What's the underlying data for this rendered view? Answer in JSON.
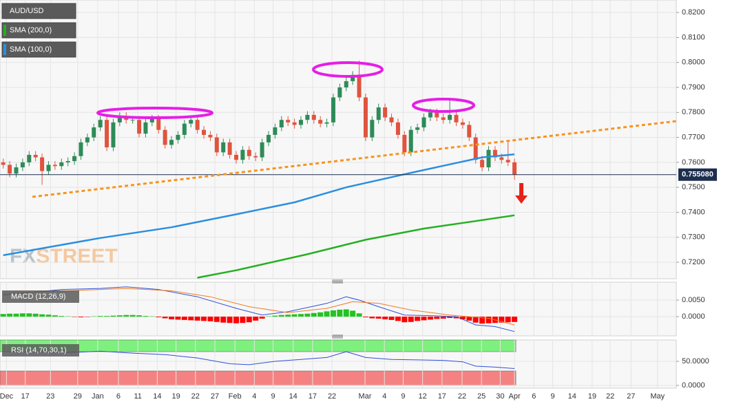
{
  "chart_data": [
    {
      "type": "candlestick",
      "symbol": "AUD/USD",
      "xlim": [
        -0.5,
        104
      ],
      "ylim": [
        0.7134,
        0.825
      ],
      "yticks": [
        {
          "value": 0.72,
          "label": "0.7200"
        },
        {
          "value": 0.73,
          "label": "0.7300"
        },
        {
          "value": 0.74,
          "label": "0.7400"
        },
        {
          "value": 0.75,
          "label": "0.7500"
        },
        {
          "value": 0.76,
          "label": "0.7600"
        },
        {
          "value": 0.77,
          "label": "0.7700"
        },
        {
          "value": 0.78,
          "label": "0.7800"
        },
        {
          "value": 0.79,
          "label": "0.7900"
        },
        {
          "value": 0.8,
          "label": "0.8000"
        },
        {
          "value": 0.81,
          "label": "0.8100"
        },
        {
          "value": 0.82,
          "label": "0.8200"
        }
      ],
      "xticks": [
        {
          "value": 0.5,
          "label": "Dec"
        },
        {
          "value": 3.4,
          "label": "17"
        },
        {
          "value": 7.3,
          "label": "23"
        },
        {
          "value": 11.5,
          "label": "29"
        },
        {
          "value": 14.6,
          "label": "Jan"
        },
        {
          "value": 17.8,
          "label": "6"
        },
        {
          "value": 20.8,
          "label": "11"
        },
        {
          "value": 23.8,
          "label": "14"
        },
        {
          "value": 26.7,
          "label": "19"
        },
        {
          "value": 29.7,
          "label": "22"
        },
        {
          "value": 32.7,
          "label": "27"
        },
        {
          "value": 35.8,
          "label": "Feb"
        },
        {
          "value": 38.8,
          "label": "4"
        },
        {
          "value": 41.7,
          "label": "9"
        },
        {
          "value": 44.8,
          "label": "14"
        },
        {
          "value": 47.8,
          "label": "17"
        },
        {
          "value": 50.8,
          "label": "22"
        },
        {
          "value": 55.9,
          "label": "Mar"
        },
        {
          "value": 58.9,
          "label": "4"
        },
        {
          "value": 61.8,
          "label": "9"
        },
        {
          "value": 64.8,
          "label": "12"
        },
        {
          "value": 67.8,
          "label": "17"
        },
        {
          "value": 70.9,
          "label": "22"
        },
        {
          "value": 73.9,
          "label": "25"
        },
        {
          "value": 76.8,
          "label": "30"
        },
        {
          "value": 79,
          "label": "Apr"
        },
        {
          "value": 82,
          "label": "6"
        },
        {
          "value": 84.9,
          "label": "9"
        },
        {
          "value": 87.9,
          "label": "14"
        },
        {
          "value": 91,
          "label": "19"
        },
        {
          "value": 93.8,
          "label": "22"
        },
        {
          "value": 97,
          "label": "27"
        },
        {
          "value": 101.1,
          "label": "May"
        }
      ],
      "up_color": "#2e8b57",
      "down_color": "#e0543f",
      "grid": true,
      "ohlc": {
        "open": [
          0.76,
          0.759,
          0.7555,
          0.758,
          0.76,
          0.763,
          0.762,
          0.7565,
          0.759,
          0.7585,
          0.76,
          0.7605,
          0.7625,
          0.768,
          0.77,
          0.774,
          0.777,
          0.766,
          0.776,
          0.7785,
          0.777,
          0.777,
          0.7715,
          0.776,
          0.7775,
          0.773,
          0.767,
          0.769,
          0.771,
          0.7755,
          0.777,
          0.773,
          0.771,
          0.77,
          0.764,
          0.768,
          0.763,
          0.761,
          0.765,
          0.7625,
          0.762,
          0.768,
          0.771,
          0.774,
          0.777,
          0.776,
          0.775,
          0.777,
          0.779,
          0.777,
          0.7755,
          0.776,
          0.786,
          0.79,
          0.7925,
          0.795,
          0.786,
          0.77,
          0.777,
          0.782,
          0.778,
          0.776,
          0.771,
          0.764,
          0.773,
          0.774,
          0.778,
          0.78,
          0.778,
          0.777,
          0.779,
          0.776,
          0.775,
          0.77,
          0.761,
          0.758,
          0.765,
          0.762,
          0.761,
          0.76
        ],
        "high": [
          0.7615,
          0.7605,
          0.7595,
          0.7615,
          0.7645,
          0.7645,
          0.7635,
          0.7605,
          0.7605,
          0.7615,
          0.762,
          0.764,
          0.7695,
          0.7715,
          0.7755,
          0.7785,
          0.7785,
          0.7775,
          0.78,
          0.78,
          0.7785,
          0.7785,
          0.7775,
          0.779,
          0.779,
          0.7745,
          0.7705,
          0.7725,
          0.777,
          0.7785,
          0.7785,
          0.7745,
          0.7725,
          0.7715,
          0.7695,
          0.7695,
          0.7645,
          0.7665,
          0.7665,
          0.764,
          0.7695,
          0.7725,
          0.7755,
          0.7785,
          0.7785,
          0.7775,
          0.7785,
          0.7805,
          0.7805,
          0.7785,
          0.7775,
          0.7875,
          0.7915,
          0.794,
          0.7965,
          0.8007,
          0.7875,
          0.7785,
          0.7835,
          0.7835,
          0.7795,
          0.7775,
          0.7725,
          0.7745,
          0.7755,
          0.7795,
          0.7815,
          0.7815,
          0.7795,
          0.785,
          0.7805,
          0.7775,
          0.7765,
          0.7715,
          0.7625,
          0.7665,
          0.7665,
          0.7635,
          0.769,
          0.7615
        ],
        "low": [
          0.7575,
          0.754,
          0.754,
          0.7565,
          0.7585,
          0.7605,
          0.751,
          0.755,
          0.757,
          0.757,
          0.7585,
          0.759,
          0.761,
          0.7665,
          0.7685,
          0.7725,
          0.7645,
          0.7645,
          0.7745,
          0.7755,
          0.7755,
          0.77,
          0.77,
          0.7745,
          0.7715,
          0.7655,
          0.7655,
          0.7675,
          0.7695,
          0.774,
          0.7715,
          0.7695,
          0.7685,
          0.7625,
          0.7625,
          0.7615,
          0.7595,
          0.7595,
          0.761,
          0.7605,
          0.7605,
          0.7665,
          0.7695,
          0.7725,
          0.7745,
          0.7735,
          0.7735,
          0.7755,
          0.7755,
          0.774,
          0.774,
          0.7745,
          0.7845,
          0.7885,
          0.791,
          0.7845,
          0.7685,
          0.7685,
          0.7755,
          0.7765,
          0.7745,
          0.7695,
          0.7625,
          0.7625,
          0.7715,
          0.7725,
          0.7765,
          0.7765,
          0.7755,
          0.7755,
          0.7745,
          0.7735,
          0.7685,
          0.7595,
          0.7565,
          0.7565,
          0.7605,
          0.7595,
          0.7585,
          0.753
        ],
        "close": [
          0.759,
          0.7555,
          0.758,
          0.76,
          0.763,
          0.762,
          0.7565,
          0.759,
          0.7585,
          0.76,
          0.7605,
          0.7625,
          0.768,
          0.77,
          0.774,
          0.777,
          0.766,
          0.776,
          0.7785,
          0.777,
          0.777,
          0.7715,
          0.776,
          0.7775,
          0.773,
          0.767,
          0.769,
          0.771,
          0.7755,
          0.777,
          0.773,
          0.771,
          0.77,
          0.764,
          0.768,
          0.763,
          0.761,
          0.765,
          0.7625,
          0.762,
          0.768,
          0.771,
          0.774,
          0.777,
          0.776,
          0.775,
          0.777,
          0.779,
          0.777,
          0.7755,
          0.776,
          0.786,
          0.79,
          0.7925,
          0.795,
          0.786,
          0.77,
          0.777,
          0.782,
          0.778,
          0.776,
          0.771,
          0.764,
          0.773,
          0.774,
          0.778,
          0.78,
          0.778,
          0.777,
          0.779,
          0.776,
          0.775,
          0.77,
          0.761,
          0.758,
          0.765,
          0.762,
          0.761,
          0.76,
          0.7551
        ]
      },
      "series": [
        {
          "name": "SMA (200,0)",
          "color": "#22b01e",
          "x": [
            30,
            36,
            47,
            56,
            65,
            73,
            79
          ],
          "values": [
            0.7138,
            0.7168,
            0.7232,
            0.729,
            0.7335,
            0.7365,
            0.7388
          ]
        },
        {
          "name": "SMA (100,0)",
          "color": "#2a8fe0",
          "x": [
            0,
            15,
            26,
            36,
            45,
            53,
            63,
            74,
            79
          ],
          "values": [
            0.7228,
            0.7297,
            0.734,
            0.7392,
            0.744,
            0.75,
            0.7558,
            0.762,
            0.7632
          ]
        }
      ],
      "last_price": {
        "value": 0.75508,
        "label": "0.755080"
      },
      "watermark": [
        "FX",
        "STREET"
      ]
    },
    {
      "type": "macd",
      "label": "MACD (12,26,9)",
      "ylim": [
        -0.0058,
        0.0104
      ],
      "yticks": [
        {
          "value": 0.005,
          "label": "0.0050"
        },
        {
          "value": 0,
          "label": "0.0000"
        }
      ],
      "up_color": "#22c322",
      "down_color": "#ff0000",
      "histogram": [
        0.0008,
        0.0009,
        0.0009,
        0.001,
        0.001,
        0.0009,
        0.0007,
        0.0006,
        0.0004,
        0.0002,
        0.0001,
        -0.0001,
        -0.0002,
        -0.0001,
        0.0001,
        0.0002,
        0.0002,
        0.0003,
        0.0004,
        0.0005,
        0.0005,
        0.0004,
        0.0002,
        0.0001,
        -0.0002,
        -0.0005,
        -0.0008,
        -0.0009,
        -0.001,
        -0.0011,
        -0.0012,
        -0.0013,
        -0.0014,
        -0.0016,
        -0.0018,
        -0.0019,
        -0.002,
        -0.0019,
        -0.0017,
        -0.0012,
        -0.0006,
        0.0001,
        0.0003,
        0.0005,
        0.0006,
        0.0007,
        0.0008,
        0.0009,
        0.0011,
        0.0013,
        0.0016,
        0.0019,
        0.0021,
        0.0022,
        0.0018,
        0.001,
        -0.0002,
        -0.0005,
        -0.0006,
        -0.0008,
        -0.001,
        -0.0013,
        -0.0017,
        -0.0016,
        -0.0013,
        -0.0011,
        -0.0009,
        -0.0007,
        -0.0006,
        -0.0004,
        -0.0005,
        -0.0008,
        -0.0012,
        -0.0018,
        -0.0021,
        -0.002,
        -0.0019,
        -0.0018,
        -0.0017,
        -0.0016
      ],
      "lines": [
        {
          "color": "#2f4fd8",
          "x": [
            0,
            9,
            15,
            19,
            24,
            30,
            36,
            40,
            44,
            50,
            53,
            55,
            58,
            62,
            66,
            70,
            73,
            76,
            79
          ],
          "values": [
            0.0065,
            0.0082,
            0.0085,
            0.009,
            0.0082,
            0.006,
            0.0025,
            0.0005,
            0.0015,
            0.004,
            0.006,
            0.005,
            0.003,
            0.0005,
            0.0003,
            0,
            -0.0025,
            -0.003,
            -0.0045
          ]
        },
        {
          "color": "#f07b22",
          "x": [
            0,
            10,
            19,
            26,
            32,
            38,
            44,
            50,
            54,
            58,
            63,
            69,
            75,
            79
          ],
          "values": [
            0.007,
            0.0078,
            0.0085,
            0.0078,
            0.006,
            0.003,
            0.0012,
            0.0025,
            0.0045,
            0.004,
            0.002,
            0.0005,
            -0.0005,
            -0.0025
          ]
        }
      ]
    },
    {
      "type": "rsi",
      "label": "RSI (14,70,30,1)",
      "ylim": [
        -5.7,
        94.3
      ],
      "yticks": [
        {
          "value": 50,
          "label": "50.0000"
        },
        {
          "value": 0,
          "label": "0.0000"
        }
      ],
      "zones": [
        {
          "from": 70,
          "to": 94.3,
          "color": "#7ef07e"
        },
        {
          "from": 0,
          "to": 30,
          "color": "#f58282"
        }
      ],
      "line": {
        "color": "#2f4fd8",
        "x": [
          0,
          5,
          10,
          15,
          20,
          25,
          30,
          35,
          38,
          42,
          46,
          50,
          53,
          56,
          60,
          64,
          68,
          71,
          73,
          76,
          79
        ],
        "values": [
          70,
          69,
          68,
          71,
          67,
          64,
          57,
          45,
          43,
          50,
          54,
          58,
          70,
          58,
          54,
          53,
          52,
          49,
          40,
          38,
          35
        ]
      }
    }
  ]
}
